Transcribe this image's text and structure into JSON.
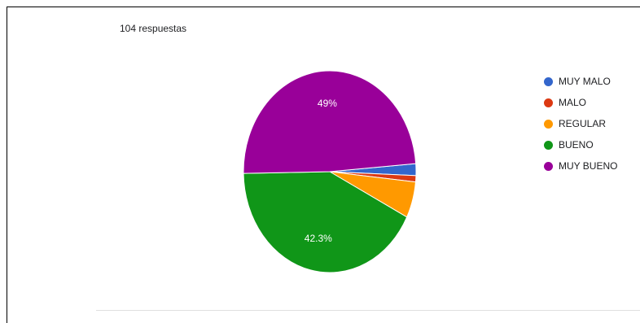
{
  "header": {
    "response_count": "104 respuestas"
  },
  "chart_data": {
    "type": "pie",
    "title": "",
    "categories": [
      "MUY MALO",
      "MALO",
      "REGULAR",
      "BUENO",
      "MUY BUENO"
    ],
    "values": [
      1.9,
      1.0,
      5.8,
      42.3,
      49.0
    ],
    "colors": [
      "#3366cc",
      "#dc3912",
      "#ff9900",
      "#109618",
      "#990099"
    ],
    "data_labels": [
      "",
      "",
      "",
      "42.3%",
      "49%"
    ],
    "legend_position": "right"
  }
}
